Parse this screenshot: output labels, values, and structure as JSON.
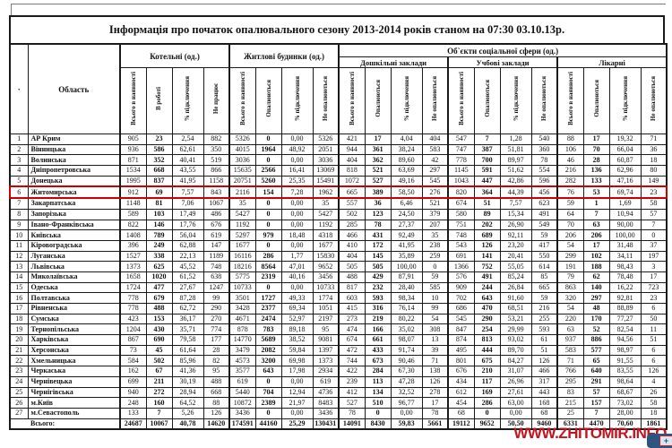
{
  "title": "Інформація про початок опалювального сезону 2013-2014 років  станом на 07:30  03.10.13р.",
  "watermark": {
    "text": "WWW.ZHITOMIR.INFO",
    "color": "#c41420",
    "icon_plus": "+"
  },
  "table": {
    "corner_label": "·",
    "region_label": "Область",
    "groups": [
      {
        "label": "Котельні (од.)",
        "cols": [
          "Всього в наявності",
          "В роботі",
          "% підключення",
          "Не працює"
        ]
      },
      {
        "label": "Житлові  будинки (од.)",
        "cols": [
          "Всього в наявності",
          "Опалюються",
          "% підключення",
          "Не опалюються"
        ]
      },
      {
        "label": "Об`єкти соціальної сфери (од.)",
        "subgroups": [
          {
            "label": "Дошкільні заклади",
            "cols": [
              "Всього в наявності",
              "Опалюються",
              "% підключення",
              "Не опалюються"
            ]
          },
          {
            "label": "Учбові заклади",
            "cols": [
              "Всього в наявності",
              "Опалюються",
              "% підключення",
              "Не опалюються"
            ]
          },
          {
            "label": "Лікарні",
            "cols": [
              "Всього в наявності",
              "Опалюються",
              "% підключення",
              "Не опалюються"
            ]
          }
        ]
      }
    ],
    "highlight_row_n": "6",
    "highlight_color": "#cc0000",
    "rows": [
      {
        "n": "1",
        "region": "АР Крим",
        "v": [
          "905",
          "23",
          "2,54",
          "882",
          "5326",
          "0",
          "0,00",
          "5326",
          "421",
          "17",
          "4,04",
          "404",
          "547",
          "7",
          "1,28",
          "540",
          "88",
          "17",
          "19,32",
          "71"
        ]
      },
      {
        "n": "2",
        "region": "Вінницька",
        "v": [
          "936",
          "586",
          "62,61",
          "350",
          "4015",
          "1964",
          "48,92",
          "2051",
          "944",
          "361",
          "38,24",
          "583",
          "747",
          "387",
          "51,81",
          "360",
          "106",
          "70",
          "66,04",
          "36"
        ]
      },
      {
        "n": "3",
        "region": "Волинська",
        "v": [
          "871",
          "352",
          "40,41",
          "519",
          "3036",
          "0",
          "0,00",
          "3036",
          "404",
          "362",
          "89,60",
          "42",
          "778",
          "700",
          "89,97",
          "78",
          "46",
          "28",
          "60,87",
          "18"
        ]
      },
      {
        "n": "4",
        "region": "Дніпропетровська",
        "v": [
          "1534",
          "668",
          "43,55",
          "866",
          "15635",
          "2566",
          "16,41",
          "13069",
          "818",
          "521",
          "63,69",
          "297",
          "1145",
          "591",
          "51,62",
          "554",
          "216",
          "136",
          "62,96",
          "80"
        ]
      },
      {
        "n": "5",
        "region": "Донецька",
        "v": [
          "1995",
          "837",
          "41,95",
          "1158",
          "20751",
          "5260",
          "25,35",
          "15491",
          "1072",
          "527",
          "49,16",
          "545",
          "1043",
          "447",
          "42,86",
          "596",
          "282",
          "133",
          "47,16",
          "149"
        ]
      },
      {
        "n": "6",
        "region": "Житомирська",
        "v": [
          "912",
          "69",
          "7,57",
          "843",
          "2116",
          "154",
          "7,28",
          "1962",
          "665",
          "389",
          "58,50",
          "276",
          "820",
          "364",
          "44,39",
          "456",
          "76",
          "53",
          "69,74",
          "23"
        ]
      },
      {
        "n": "7",
        "region": "Закарпатська",
        "v": [
          "1148",
          "81",
          "7,06",
          "1067",
          "35",
          "0",
          "0,00",
          "35",
          "557",
          "36",
          "6,46",
          "521",
          "674",
          "51",
          "7,57",
          "623",
          "59",
          "1",
          "1,69",
          "58"
        ]
      },
      {
        "n": "8",
        "region": "Запорізька",
        "v": [
          "589",
          "103",
          "17,49",
          "486",
          "5427",
          "0",
          "0,00",
          "5427",
          "502",
          "123",
          "24,50",
          "379",
          "580",
          "89",
          "15,34",
          "491",
          "64",
          "7",
          "10,94",
          "57"
        ]
      },
      {
        "n": "9",
        "region": "Івано-Франківська",
        "v": [
          "822",
          "146",
          "17,76",
          "676",
          "1192",
          "0",
          "0,00",
          "1192",
          "285",
          "78",
          "27,37",
          "207",
          "751",
          "202",
          "26,90",
          "549",
          "70",
          "63",
          "90,00",
          "7"
        ]
      },
      {
        "n": "10",
        "region": "Київська",
        "v": [
          "1408",
          "789",
          "56,04",
          "619",
          "5297",
          "979",
          "18,48",
          "4318",
          "466",
          "431",
          "92,49",
          "35",
          "748",
          "689",
          "92,11",
          "59",
          "206",
          "206",
          "100,00",
          "0"
        ]
      },
      {
        "n": "11",
        "region": "Кіровоградська",
        "v": [
          "396",
          "249",
          "62,88",
          "147",
          "1677",
          "0",
          "0,00",
          "1677",
          "410",
          "172",
          "41,95",
          "238",
          "543",
          "126",
          "23,20",
          "417",
          "54",
          "17",
          "31,48",
          "37"
        ]
      },
      {
        "n": "12",
        "region": "Луганська",
        "v": [
          "1527",
          "338",
          "22,13",
          "1189",
          "16116",
          "286",
          "1,77",
          "15830",
          "404",
          "145",
          "35,89",
          "259",
          "691",
          "141",
          "20,41",
          "550",
          "299",
          "102",
          "34,11",
          "197"
        ]
      },
      {
        "n": "13",
        "region": "Львівська",
        "v": [
          "1373",
          "625",
          "45,52",
          "748",
          "18216",
          "8564",
          "47,01",
          "9652",
          "505",
          "505",
          "100,00",
          "0",
          "1366",
          "752",
          "55,05",
          "614",
          "191",
          "188",
          "98,43",
          "3"
        ]
      },
      {
        "n": "14",
        "region": "Миколаївська",
        "v": [
          "1658",
          "1020",
          "61,52",
          "638",
          "5775",
          "2319",
          "40,16",
          "3456",
          "488",
          "429",
          "87,91",
          "59",
          "576",
          "491",
          "85,24",
          "85",
          "79",
          "62",
          "78,48",
          "17"
        ]
      },
      {
        "n": "15",
        "region": "Одеська",
        "v": [
          "1724",
          "477",
          "27,67",
          "1247",
          "10733",
          "0",
          "0,00",
          "10733",
          "817",
          "232",
          "28,40",
          "585",
          "909",
          "244",
          "26,84",
          "665",
          "863",
          "140",
          "16,22",
          "723"
        ]
      },
      {
        "n": "16",
        "region": "Полтавська",
        "v": [
          "778",
          "679",
          "87,28",
          "99",
          "3501",
          "1727",
          "49,33",
          "1774",
          "603",
          "593",
          "98,34",
          "10",
          "702",
          "643",
          "91,60",
          "59",
          "320",
          "297",
          "92,81",
          "23"
        ]
      },
      {
        "n": "17",
        "region": "Рівненська",
        "v": [
          "778",
          "488",
          "62,72",
          "290",
          "3428",
          "2377",
          "69,34",
          "1051",
          "415",
          "316",
          "76,14",
          "99",
          "686",
          "470",
          "68,51",
          "216",
          "54",
          "48",
          "88,89",
          "6"
        ]
      },
      {
        "n": "18",
        "region": "Сумська",
        "v": [
          "423",
          "153",
          "36,17",
          "270",
          "4671",
          "2474",
          "52,97",
          "2197",
          "273",
          "219",
          "80,22",
          "54",
          "545",
          "290",
          "53,21",
          "255",
          "220",
          "170",
          "77,27",
          "50"
        ]
      },
      {
        "n": "19",
        "region": "Тернопільська",
        "v": [
          "1204",
          "430",
          "35,71",
          "774",
          "878",
          "783",
          "89,18",
          "95",
          "474",
          "166",
          "35,02",
          "308",
          "847",
          "254",
          "29,99",
          "593",
          "63",
          "52",
          "82,54",
          "11"
        ]
      },
      {
        "n": "20",
        "region": "Харківська",
        "v": [
          "867",
          "690",
          "79,58",
          "177",
          "14770",
          "5689",
          "38,52",
          "9081",
          "674",
          "661",
          "98,07",
          "13",
          "874",
          "813",
          "93,02",
          "61",
          "937",
          "886",
          "94,56",
          "51"
        ]
      },
      {
        "n": "21",
        "region": "Херсонська",
        "v": [
          "73",
          "45",
          "61,64",
          "28",
          "3479",
          "2082",
          "59,84",
          "1397",
          "472",
          "433",
          "91,74",
          "39",
          "495",
          "444",
          "89,70",
          "51",
          "583",
          "577",
          "98,97",
          "6"
        ]
      },
      {
        "n": "22",
        "region": "Хмельницька",
        "v": [
          "584",
          "502",
          "85,96",
          "82",
          "4573",
          "3200",
          "69,98",
          "1373",
          "744",
          "673",
          "90,46",
          "71",
          "801",
          "675",
          "84,27",
          "126",
          "71",
          "65",
          "91,55",
          "6"
        ]
      },
      {
        "n": "23",
        "region": "Черкаська",
        "v": [
          "162",
          "67",
          "41,36",
          "95",
          "3577",
          "643",
          "17,98",
          "2934",
          "422",
          "284",
          "67,30",
          "138",
          "676",
          "210",
          "31,07",
          "466",
          "766",
          "640",
          "83,55",
          "126"
        ]
      },
      {
        "n": "24",
        "region": "Чернівецька",
        "v": [
          "699",
          "211",
          "30,19",
          "488",
          "619",
          "0",
          "0,00",
          "619",
          "239",
          "113",
          "47,28",
          "126",
          "434",
          "117",
          "26,96",
          "317",
          "295",
          "291",
          "98,64",
          "4"
        ]
      },
      {
        "n": "25",
        "region": "Чернігівська",
        "v": [
          "940",
          "272",
          "28,94",
          "668",
          "5440",
          "704",
          "12,94",
          "4736",
          "412",
          "134",
          "32,52",
          "278",
          "612",
          "169",
          "27,61",
          "443",
          "83",
          "57",
          "68,67",
          "26"
        ]
      },
      {
        "n": "26",
        "region": "м.Київ",
        "v": [
          "248",
          "160",
          "64,52",
          "88",
          "10872",
          "2389",
          "21,97",
          "8483",
          "527",
          "510",
          "96,77",
          "17",
          "454",
          "286",
          "63,00",
          "168",
          "215",
          "157",
          "73,02",
          "58"
        ]
      },
      {
        "n": "27",
        "region": "м.Севастополь",
        "v": [
          "133",
          "7",
          "5,26",
          "126",
          "3436",
          "0",
          "0,00",
          "3436",
          "78",
          "0",
          "0,00",
          "78",
          "68",
          "0",
          "0,00",
          "68",
          "25",
          "7",
          "28,00",
          "18"
        ]
      }
    ],
    "totals": {
      "label": "Всього:",
      "v": [
        "24687",
        "10067",
        "40,78",
        "14620",
        "174591",
        "44160",
        "25,29",
        "130431",
        "14091",
        "8430",
        "59,83",
        "5661",
        "19112",
        "9652",
        "50,50",
        "9460",
        "6331",
        "4470",
        "70,60",
        "1861"
      ]
    }
  }
}
